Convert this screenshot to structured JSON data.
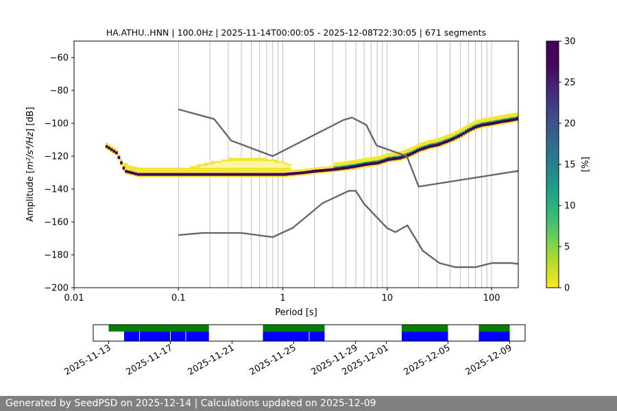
{
  "chart_data": [
    {
      "type": "heatmap",
      "title": "HA.ATHU..HNN | 100.0Hz | 2025-11-14T00:00:05 - 2025-12-08T22:30:05 | 671 segments",
      "xlabel": "Period [s]",
      "ylabel_prefix": "Amplitude [",
      "ylabel_math": "m²/s⁴/Hz",
      "ylabel_suffix": "] [dB]",
      "x_scale": "log",
      "xlim": [
        0.01,
        180
      ],
      "ylim": [
        -200,
        -50
      ],
      "x_ticks": [
        0.01,
        0.1,
        1,
        10,
        100
      ],
      "x_tick_labels": [
        "0.01",
        "0.1",
        "1",
        "10",
        "100"
      ],
      "y_ticks": [
        -200,
        -180,
        -160,
        -140,
        -120,
        -100,
        -80,
        -60
      ],
      "y_tick_labels": [
        "−200",
        "−180",
        "−160",
        "−140",
        "−120",
        "−100",
        "−80",
        "−60"
      ],
      "grid": "vertical at periods",
      "grid_periods": [
        0.1,
        0.2,
        0.3,
        0.4,
        0.5,
        0.6,
        0.7,
        0.8,
        0.9,
        1,
        2,
        3,
        4,
        5,
        6,
        7,
        8,
        9,
        10,
        20,
        30,
        40,
        50,
        60,
        70,
        80,
        90,
        100
      ],
      "colorbar": {
        "label": "[%]",
        "range": [
          0,
          30
        ],
        "ticks": [
          0,
          5,
          10,
          15,
          20,
          25,
          30
        ],
        "tick_labels": [
          "0",
          "5",
          "10",
          "15",
          "20",
          "25",
          "30"
        ],
        "colormap": "viridis_r"
      },
      "psd_mode": {
        "period": [
          0.02,
          0.025,
          0.03,
          0.035,
          0.04,
          0.05,
          0.07,
          0.1,
          0.15,
          0.2,
          0.3,
          0.5,
          0.7,
          1,
          1.5,
          2,
          3,
          4,
          5,
          6,
          8,
          10,
          13,
          16,
          20,
          25,
          30,
          40,
          50,
          60,
          70,
          80,
          100,
          120,
          150,
          180
        ],
        "db": [
          -114,
          -118,
          -129,
          -130,
          -131,
          -131,
          -131,
          -131,
          -131,
          -131,
          -131,
          -131,
          -131,
          -131,
          -130,
          -129,
          -128,
          -127,
          -126,
          -125,
          -124,
          -122,
          -121,
          -119,
          -116,
          -114,
          -113,
          -110,
          -107,
          -104,
          -102,
          -101,
          -100,
          -99,
          -98,
          -97
        ]
      },
      "psd_spread": {
        "period": [
          0.03,
          0.04,
          0.1,
          0.15,
          0.2,
          0.3,
          0.5,
          0.7,
          1,
          1.2
        ],
        "db_upper": [
          -125,
          -127,
          -128,
          -126,
          -124,
          -122,
          -122,
          -122,
          -124,
          -126
        ]
      },
      "noise_models": [
        {
          "period": [
            0.1,
            0.22,
            0.32,
            0.8,
            3.8,
            4.6,
            6.3,
            7.9,
            15.4,
            20,
            354.8
          ],
          "db": [
            -91.5,
            -97.4,
            -110.5,
            -120,
            -98,
            -96.5,
            -101,
            -113.5,
            -120,
            -138.5,
            -126
          ]
        },
        {
          "period": [
            0.1,
            0.17,
            0.4,
            0.8,
            1.24,
            2.4,
            4.3,
            5,
            6,
            10,
            12,
            15.6,
            21.9,
            31.6,
            45,
            70,
            101,
            154,
            328
          ],
          "db": [
            -168,
            -166.7,
            -166.7,
            -169.2,
            -163.7,
            -148.6,
            -141.1,
            -141.1,
            -149,
            -163.8,
            -166.2,
            -162.1,
            -177.5,
            -185,
            -187.5,
            -187.5,
            -185,
            -185,
            -187.5
          ]
        }
      ]
    },
    {
      "type": "timeline",
      "x_tick_labels": [
        "2025-11-13",
        "2025-11-17",
        "2025-11-21",
        "2025-11-25",
        "2025-11-29",
        "2025-12-01",
        "2025-12-05",
        "2025-12-09"
      ],
      "x_tick_dates": [
        "2025-11-13",
        "2025-11-17",
        "2025-11-21",
        "2025-11-25",
        "2025-11-29",
        "2025-12-01",
        "2025-12-05",
        "2025-12-09"
      ],
      "xlim": [
        "2025-11-12",
        "2025-12-10"
      ],
      "availability_color": "#008000",
      "psd_coverage_color": "#0000ff",
      "data_availability": [
        [
          "2025-11-13",
          "2025-11-19.5"
        ],
        [
          "2025-11-23",
          "2025-11-27"
        ],
        [
          "2025-12-02",
          "2025-12-05"
        ],
        [
          "2025-12-07",
          "2025-12-09"
        ]
      ],
      "psd_coverage": [
        [
          "2025-11-14",
          "2025-11-19.5"
        ],
        [
          "2025-11-23",
          "2025-11-27"
        ],
        [
          "2025-12-02",
          "2025-12-05"
        ],
        [
          "2025-12-07",
          "2025-12-09"
        ]
      ],
      "gap_marks": [
        "2025-11-15",
        "2025-11-17",
        "2025-11-18",
        "2025-11-26"
      ]
    }
  ],
  "footer": {
    "text": "Generated by SeedPSD on 2025-12-14 | Calculations updated on 2025-12-09"
  }
}
